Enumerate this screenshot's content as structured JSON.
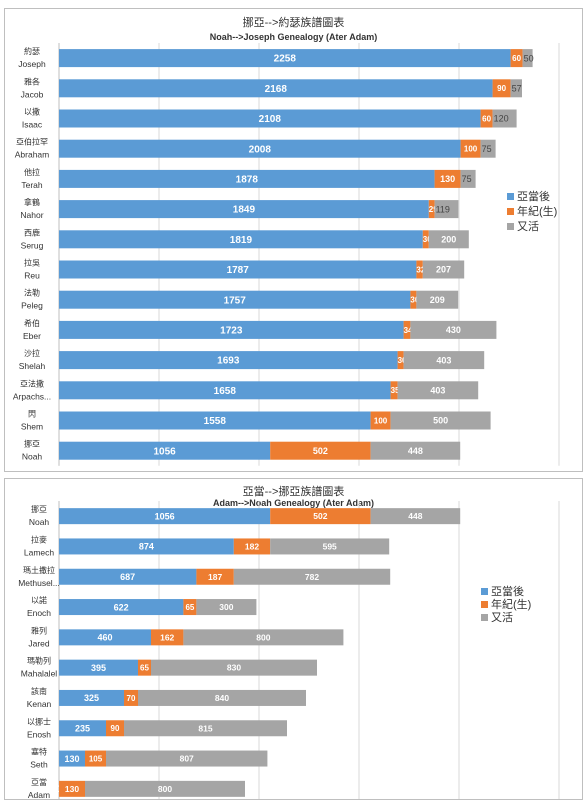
{
  "charts": [
    {
      "title_zh": "挪亞-->約瑟族譜圖表",
      "title_en": "Noah-->Joseph Genealogy (Ater Adam)"
    },
    {
      "title_zh": "亞當-->挪亞族譜圖表",
      "title_en": "Adam-->Noah Genealogy (Ater Adam)"
    }
  ],
  "legend": [
    "亞當後",
    "年紀(生)",
    "又活"
  ],
  "colors": {
    "after": "#5b9bd5",
    "age": "#ed7d31",
    "lived": "#a5a5a5",
    "grid": "#d9d9d9"
  },
  "chart_data": [
    {
      "type": "bar",
      "stacked": true,
      "orientation": "horizontal",
      "title": "挪亞-->約瑟族譜圖表 / Noah-->Joseph Genealogy (Ater Adam)",
      "categories": [
        {
          "zh": "約瑟",
          "en": "Joseph"
        },
        {
          "zh": "雅各",
          "en": "Jacob"
        },
        {
          "zh": "以撒",
          "en": "Isaac"
        },
        {
          "zh": "亞伯拉罕",
          "en": "Abraham"
        },
        {
          "zh": "他拉",
          "en": "Terah"
        },
        {
          "zh": "拿鶴",
          "en": "Nahor"
        },
        {
          "zh": "西鹿",
          "en": "Serug"
        },
        {
          "zh": "拉吳",
          "en": "Reu"
        },
        {
          "zh": "法勒",
          "en": "Peleg"
        },
        {
          "zh": "希伯",
          "en": "Eber"
        },
        {
          "zh": "沙拉",
          "en": "Shelah"
        },
        {
          "zh": "亞法撒",
          "en": "Arpachs..."
        },
        {
          "zh": "閃",
          "en": "Shem"
        },
        {
          "zh": "挪亞",
          "en": "Noah"
        }
      ],
      "series": [
        {
          "name": "亞當後",
          "values": [
            2258,
            2168,
            2108,
            2008,
            1878,
            1849,
            1819,
            1787,
            1757,
            1723,
            1693,
            1658,
            1558,
            1056
          ]
        },
        {
          "name": "年紀(生)",
          "values": [
            60,
            90,
            60,
            100,
            130,
            29,
            30,
            32,
            30,
            34,
            30,
            35,
            100,
            502
          ]
        },
        {
          "name": "又活",
          "values": [
            50,
            57,
            120,
            75,
            75,
            119,
            200,
            207,
            209,
            430,
            403,
            403,
            500,
            448
          ]
        }
      ],
      "xlim": [
        0,
        2500
      ],
      "grid": true,
      "legend_position": "right"
    },
    {
      "type": "bar",
      "stacked": true,
      "orientation": "horizontal",
      "title": "亞當-->挪亞族譜圖表 / Adam-->Noah Genealogy (Ater Adam)",
      "categories": [
        {
          "zh": "挪亞",
          "en": "Noah"
        },
        {
          "zh": "拉麥",
          "en": "Lamech"
        },
        {
          "zh": "瑪土撒拉",
          "en": "Methusel..."
        },
        {
          "zh": "以諾",
          "en": "Enoch"
        },
        {
          "zh": "雅列",
          "en": "Jared"
        },
        {
          "zh": "瑪勒列",
          "en": "Mahalalel"
        },
        {
          "zh": "該南",
          "en": "Kenan"
        },
        {
          "zh": "以挪士",
          "en": "Enosh"
        },
        {
          "zh": "塞特",
          "en": "Seth"
        },
        {
          "zh": "亞當",
          "en": "Adam"
        }
      ],
      "series": [
        {
          "name": "亞當後",
          "values": [
            1056,
            874,
            687,
            622,
            460,
            395,
            325,
            235,
            130,
            0
          ]
        },
        {
          "name": "年紀(生)",
          "values": [
            502,
            182,
            187,
            65,
            162,
            65,
            70,
            90,
            105,
            130
          ]
        },
        {
          "name": "又活",
          "values": [
            448,
            595,
            782,
            300,
            800,
            830,
            840,
            815,
            807,
            800
          ]
        }
      ],
      "xlim": [
        0,
        2500
      ],
      "grid": true,
      "legend_position": "right"
    }
  ]
}
